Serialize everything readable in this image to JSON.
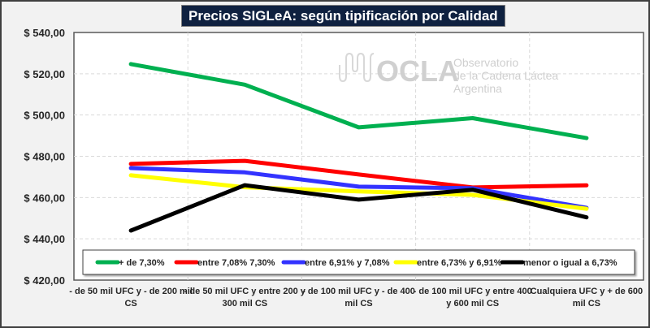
{
  "chart_data": {
    "type": "line",
    "title": "Precios SIGLeA: según tipificación por Calidad",
    "xlabel": "",
    "ylabel": "",
    "ylim": [
      420,
      540
    ],
    "yticks": [
      420,
      440,
      460,
      480,
      500,
      520,
      540
    ],
    "ytick_labels": [
      "$ 420,00",
      "$ 440,00",
      "$ 460,00",
      "$ 480,00",
      "$ 500,00",
      "$ 520,00",
      "$ 540,00"
    ],
    "grid": true,
    "legend_position": "bottom-inside",
    "categories": [
      [
        "- de 50 mil UFC y - de 200 mil",
        "CS"
      ],
      [
        "- de 50 mil UFC y entre  200 y",
        "300 mil CS"
      ],
      [
        "- de 100 mil UFC y - de 400",
        "mil CS"
      ],
      [
        "- de 100 mil UFC y entre  400",
        "y 600 mil CS"
      ],
      [
        "Cualquiera UFC y + de 600",
        "mil CS"
      ]
    ],
    "series": [
      {
        "name": "+ de 7,30%",
        "color": "#00b050",
        "values": [
          524.7,
          514.7,
          494.0,
          498.5,
          488.8
        ]
      },
      {
        "name": "entre 7,08% 7,30%",
        "color": "#ff0000",
        "values": [
          476.3,
          477.8,
          471.2,
          464.9,
          465.9
        ]
      },
      {
        "name": "entre 6,91% y 7,08%",
        "color": "#3333ff",
        "values": [
          474.3,
          472.2,
          465.3,
          464.5,
          455.0
        ]
      },
      {
        "name": "entre 6,73% y 6,91%",
        "color": "#ffff00",
        "values": [
          470.8,
          465.0,
          463.0,
          461.3,
          454.6
        ]
      },
      {
        "name": "menor o igual a 6,73%",
        "color": "#000000",
        "values": [
          444.0,
          466.0,
          459.0,
          463.8,
          450.4
        ]
      }
    ]
  },
  "watermark": {
    "brand": "OCLA",
    "lines": [
      "Observatorio",
      "de la Cadena Láctea",
      "Argentina"
    ]
  }
}
